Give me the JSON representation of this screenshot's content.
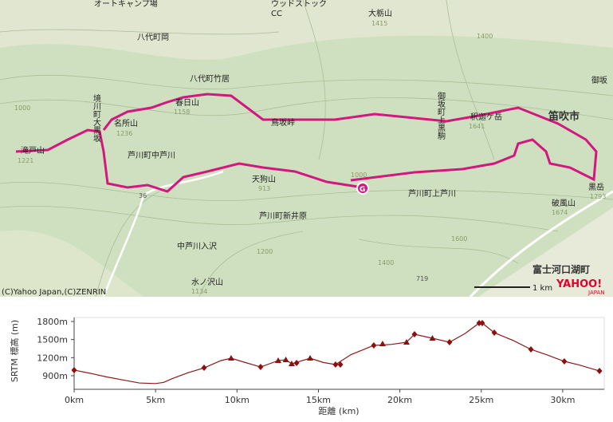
{
  "map": {
    "labels": [
      "オートキャンプ場",
      "ウッドストック",
      "CC",
      "大栃山",
      "1415",
      "八代町岡",
      "八代町竹居",
      "春日山",
      "1158",
      "名所山",
      "1236",
      "境川町大黒坂",
      "芦川町中芦川",
      "鳥坂峠",
      "御坂町上黒駒",
      "釈迦ケ岳",
      "1641",
      "笛吹市",
      "御坂",
      "黒岳",
      "1793",
      "破風山",
      "1674",
      "天狗山",
      "913",
      "芦川町上芦川",
      "芦川町新井原",
      "滝戸山",
      "1221",
      "水ノ沢山",
      "1134",
      "中芦川入沢",
      "富士河口湖町",
      "(C)Yahoo Japan,(C)ZENRIN",
      "1 km",
      "36",
      "719",
      "YAHOO!",
      "JAPAN",
      "G",
      "1000",
      "1400",
      "1200",
      "1600",
      "1400",
      "1000"
    ]
  },
  "chart_data": {
    "type": "line",
    "ylabel": "SRTM 標高 (m)",
    "xlabel": "距離 (km)",
    "color": "#8b1a1a",
    "marker_color": "#8b1010",
    "x": [
      0,
      1,
      2,
      3,
      4,
      5,
      5.5,
      6,
      7,
      8,
      9,
      9.64,
      10.5,
      11.45,
      12.53,
      13,
      13.36,
      14.49,
      15.3,
      16.05,
      17,
      18.4,
      19.5,
      20.41,
      20.9,
      22,
      23.05,
      24,
      24.87,
      25.06,
      25.8,
      27,
      28.05,
      29,
      30.1,
      31,
      32.26
    ],
    "values": [
      993,
      940,
      880,
      830,
      780,
      770,
      790,
      850,
      950,
      1032,
      1150,
      1191,
      1120,
      1045,
      1151,
      1165,
      1098,
      1191,
      1120,
      1085,
      1250,
      1403,
      1420,
      1456,
      1588,
      1522,
      1456,
      1600,
      1773,
      1773,
      1614,
      1480,
      1337,
      1250,
      1138,
      1080,
      979
    ],
    "markers": [
      {
        "shape": "diamond",
        "x": [
          0,
          7.98,
          11.45,
          13.66,
          16.05,
          16.35,
          18.4,
          20.9,
          23.05,
          24.87,
          25.06,
          25.8,
          28.05,
          30.1,
          32.26
        ],
        "values": [
          993,
          1032,
          1045,
          1112,
          1085,
          1085,
          1403,
          1588,
          1456,
          1773,
          1773,
          1614,
          1337,
          1138,
          979
        ]
      },
      {
        "shape": "triangle",
        "x": [
          9.64,
          12.53,
          13.0,
          13.36,
          14.49,
          18.94,
          20.41,
          22.0
        ],
        "values": [
          1191,
          1151,
          1165,
          1098,
          1191,
          1429,
          1456,
          1522
        ]
      }
    ],
    "xlim": [
      0,
      32.55
    ],
    "ylim": [
      675,
      1866
    ],
    "xticks": [
      {
        "value": 0,
        "label": "0km"
      },
      {
        "value": 5,
        "label": "5km"
      },
      {
        "value": 10,
        "label": "10km"
      },
      {
        "value": 15,
        "label": "15km"
      },
      {
        "value": 20,
        "label": "20km"
      },
      {
        "value": 25,
        "label": "25km"
      },
      {
        "value": 30,
        "label": "30km"
      }
    ],
    "yticks": [
      {
        "value": 900,
        "label": "900m"
      },
      {
        "value": 1200,
        "label": "1200m"
      },
      {
        "value": 1500,
        "label": "1500m"
      },
      {
        "value": 1800,
        "label": "1800m"
      }
    ]
  }
}
